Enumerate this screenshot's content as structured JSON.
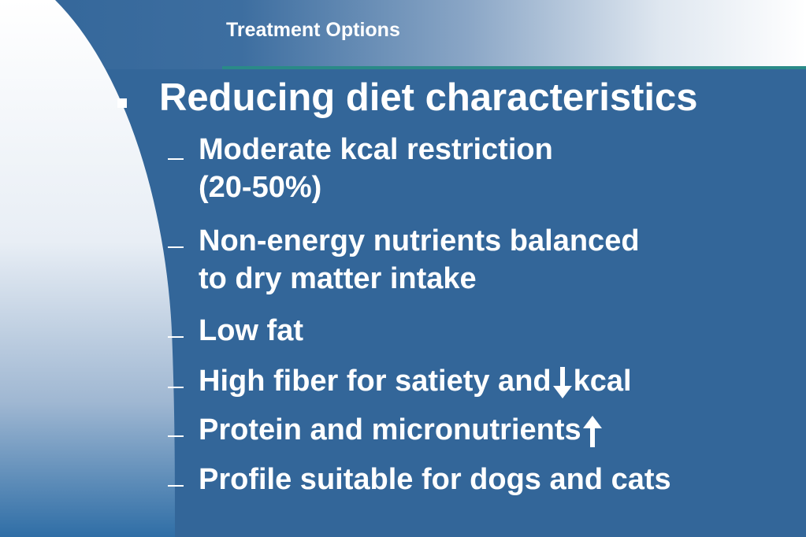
{
  "slide": {
    "header_title": "Treatment Options",
    "heading": "Reducing diet characteristics",
    "items": [
      {
        "line1": "Moderate kcal restriction",
        "line2": "(20-50%)"
      },
      {
        "line1": "Non-energy nutrients balanced",
        "line2": "to dry matter intake"
      },
      {
        "line1": "Low fat"
      },
      {
        "text_before": "High fiber for satiety and",
        "arrow": "down-arrow-icon",
        "text_after": "kcal"
      },
      {
        "text_before": "Protein and micronutrients",
        "arrow": "up-arrow-icon"
      },
      {
        "line1": "Profile suitable for dogs and cats"
      }
    ]
  },
  "colors": {
    "background": "#336699",
    "rule": "#2a8a88",
    "text": "#ffffff"
  }
}
